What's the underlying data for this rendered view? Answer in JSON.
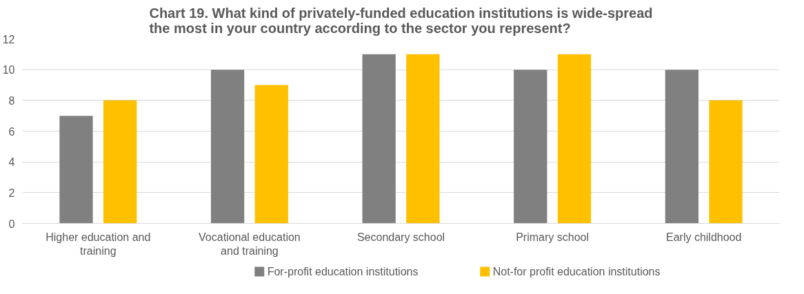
{
  "chart_data": {
    "type": "bar",
    "title": "Chart 19. What kind of privately-funded education institutions is wide-spread the most in your country according to the sector you represent?",
    "categories": [
      "Higher education and training",
      "Vocational education and training",
      "Secondary school",
      "Primary school",
      "Early childhood"
    ],
    "series": [
      {
        "name": "For-profit education institutions",
        "color": "#808080",
        "values": [
          7,
          10,
          11,
          10,
          10
        ]
      },
      {
        "name": "Not-for profit education institutions",
        "color": "#ffc000",
        "values": [
          8,
          9,
          11,
          11,
          8
        ]
      }
    ],
    "ylim": [
      0,
      12
    ],
    "yticks": [
      0,
      2,
      4,
      6,
      8,
      10,
      12
    ],
    "grid": "y",
    "legend": "bottom"
  }
}
